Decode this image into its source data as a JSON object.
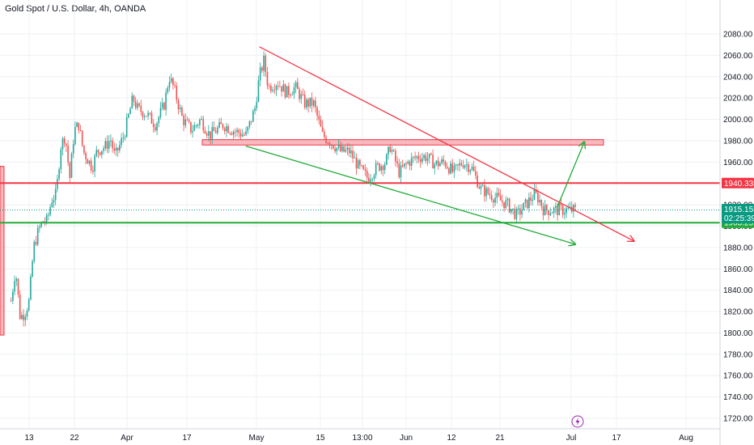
{
  "title": "Gold Spot / U.S. Dollar, 4h, OANDA",
  "colors": {
    "up": "#26a69a",
    "down": "#ef5350",
    "resistance": "#f23645",
    "support": "#22ab3a",
    "current": "#089981",
    "zone": "#f6a2a9",
    "grid": "#eef0f3",
    "axis_text": "#131722",
    "lightning": "#9c27b0"
  },
  "icons": {
    "bottom_marker": "lightning-icon"
  },
  "chart_data": {
    "type": "candlestick",
    "title": "Gold Spot / U.S. Dollar, 4h, OANDA",
    "xlabel": "",
    "ylabel": "",
    "ylim": [
      1710,
      2090
    ],
    "y_ticks": [
      1720,
      1740,
      1760,
      1780,
      1800,
      1820,
      1840,
      1860,
      1880,
      1900,
      1920,
      1940,
      1960,
      1980,
      2000,
      2020,
      2040,
      2060,
      2080
    ],
    "x_tick_labels": [
      "13",
      "22",
      "Apr",
      "17",
      "May",
      "15",
      "13:00",
      "Jun",
      "12",
      "21",
      "Jul",
      "17",
      "Aug"
    ],
    "grid": true,
    "close_series": [
      {
        "x": "Mar 9",
        "close": 1830
      },
      {
        "x": "Mar 10",
        "close": 1860
      },
      {
        "x": "Mar 11",
        "close": 1815
      },
      {
        "x": "Mar 12",
        "close": 1818
      },
      {
        "x": "Mar 13",
        "close": 1830
      },
      {
        "x": "Mar 14",
        "close": 1880
      },
      {
        "x": "Mar 15",
        "close": 1895
      },
      {
        "x": "Mar 16",
        "close": 1905
      },
      {
        "x": "Mar 17",
        "close": 1905
      },
      {
        "x": "Mar 18",
        "close": 1925
      },
      {
        "x": "Mar 19",
        "close": 1930
      },
      {
        "x": "Mar 20",
        "close": 1975
      },
      {
        "x": "Mar 21",
        "close": 1985
      },
      {
        "x": "Mar 22",
        "close": 1945
      },
      {
        "x": "Mar 23",
        "close": 1990
      },
      {
        "x": "Mar 24",
        "close": 1995
      },
      {
        "x": "Mar 25",
        "close": 1970
      },
      {
        "x": "Mar 27",
        "close": 1955
      },
      {
        "x": "Mar 28",
        "close": 1970
      },
      {
        "x": "Mar 30",
        "close": 1975
      },
      {
        "x": "Mar 31",
        "close": 1982
      },
      {
        "x": "Apr 1",
        "close": 1965
      },
      {
        "x": "Apr 3",
        "close": 1985
      },
      {
        "x": "Apr 5",
        "close": 2020
      },
      {
        "x": "Apr 6",
        "close": 2010
      },
      {
        "x": "Apr 8",
        "close": 2005
      },
      {
        "x": "Apr 10",
        "close": 1995
      },
      {
        "x": "Apr 12",
        "close": 2015
      },
      {
        "x": "Apr 13",
        "close": 2040
      },
      {
        "x": "Apr 14",
        "close": 2030
      },
      {
        "x": "Apr 16",
        "close": 2000
      },
      {
        "x": "Apr 18",
        "close": 1990
      },
      {
        "x": "Apr 20",
        "close": 2000
      },
      {
        "x": "Apr 22",
        "close": 1985
      },
      {
        "x": "Apr 25",
        "close": 1995
      },
      {
        "x": "Apr 27",
        "close": 1990
      },
      {
        "x": "Apr 30",
        "close": 1985
      },
      {
        "x": "May 2",
        "close": 2010
      },
      {
        "x": "May 3",
        "close": 2040
      },
      {
        "x": "May 4",
        "close": 2055
      },
      {
        "x": "May 5",
        "close": 2030
      },
      {
        "x": "May 7",
        "close": 2035
      },
      {
        "x": "May 9",
        "close": 2025
      },
      {
        "x": "May 11",
        "close": 2030
      },
      {
        "x": "May 13",
        "close": 2015
      },
      {
        "x": "May 15",
        "close": 2015
      },
      {
        "x": "May 17",
        "close": 1985
      },
      {
        "x": "May 19",
        "close": 1978
      },
      {
        "x": "May 21",
        "close": 1970
      },
      {
        "x": "May 23",
        "close": 1970
      },
      {
        "x": "May 25",
        "close": 1955
      },
      {
        "x": "May 27",
        "close": 1945
      },
      {
        "x": "May 29",
        "close": 1955
      },
      {
        "x": "May 31",
        "close": 1960
      },
      {
        "x": "Jun 1",
        "close": 1975
      },
      {
        "x": "Jun 3",
        "close": 1950
      },
      {
        "x": "Jun 5",
        "close": 1960
      },
      {
        "x": "Jun 7",
        "close": 1965
      },
      {
        "x": "Jun 9",
        "close": 1965
      },
      {
        "x": "Jun 11",
        "close": 1958
      },
      {
        "x": "Jun 13",
        "close": 1960
      },
      {
        "x": "Jun 15",
        "close": 1950
      },
      {
        "x": "Jun 17",
        "close": 1960
      },
      {
        "x": "Jun 19",
        "close": 1955
      },
      {
        "x": "Jun 21",
        "close": 1935
      },
      {
        "x": "Jun 23",
        "close": 1930
      },
      {
        "x": "Jun 25",
        "close": 1925
      },
      {
        "x": "Jun 27",
        "close": 1920
      },
      {
        "x": "Jun 29",
        "close": 1910
      },
      {
        "x": "Jun 30",
        "close": 1915
      },
      {
        "x": "Jul 2",
        "close": 1925
      },
      {
        "x": "Jul 3",
        "close": 1930
      },
      {
        "x": "Jul 4",
        "close": 1925
      },
      {
        "x": "Jul 5",
        "close": 1915
      },
      {
        "x": "Jul 6",
        "close": 1915
      }
    ],
    "horizontal_levels": [
      {
        "name": "resistance",
        "price": 1940.335,
        "label": "1940.335"
      },
      {
        "name": "support",
        "price": 1903.251,
        "label": "1903.251"
      },
      {
        "name": "current",
        "price": 1915.155,
        "label": "1915.155"
      }
    ],
    "countdown": "02:25:39",
    "zone": {
      "x_start": "Apr 20",
      "x_end": "Jul 15",
      "price_low": 1976,
      "price_high": 1981
    },
    "left_box": {
      "price_low": 1798,
      "price_high": 1956
    },
    "trendlines": [
      {
        "name": "falling-resistance",
        "from": {
          "x": "May 3",
          "price": 2068
        },
        "to": {
          "x": "Jul 25",
          "price": 1886
        },
        "arrow": true
      },
      {
        "name": "falling-support",
        "from": {
          "x": "Apr 30",
          "price": 1975
        },
        "to": {
          "x": "Jul 12",
          "price": 1883
        },
        "arrow": true
      },
      {
        "name": "breakout-projection",
        "from": {
          "x": "Jul 8",
          "price": 1918
        },
        "to": {
          "x": "Jul 14",
          "price": 1979
        },
        "arrow": true
      }
    ]
  }
}
